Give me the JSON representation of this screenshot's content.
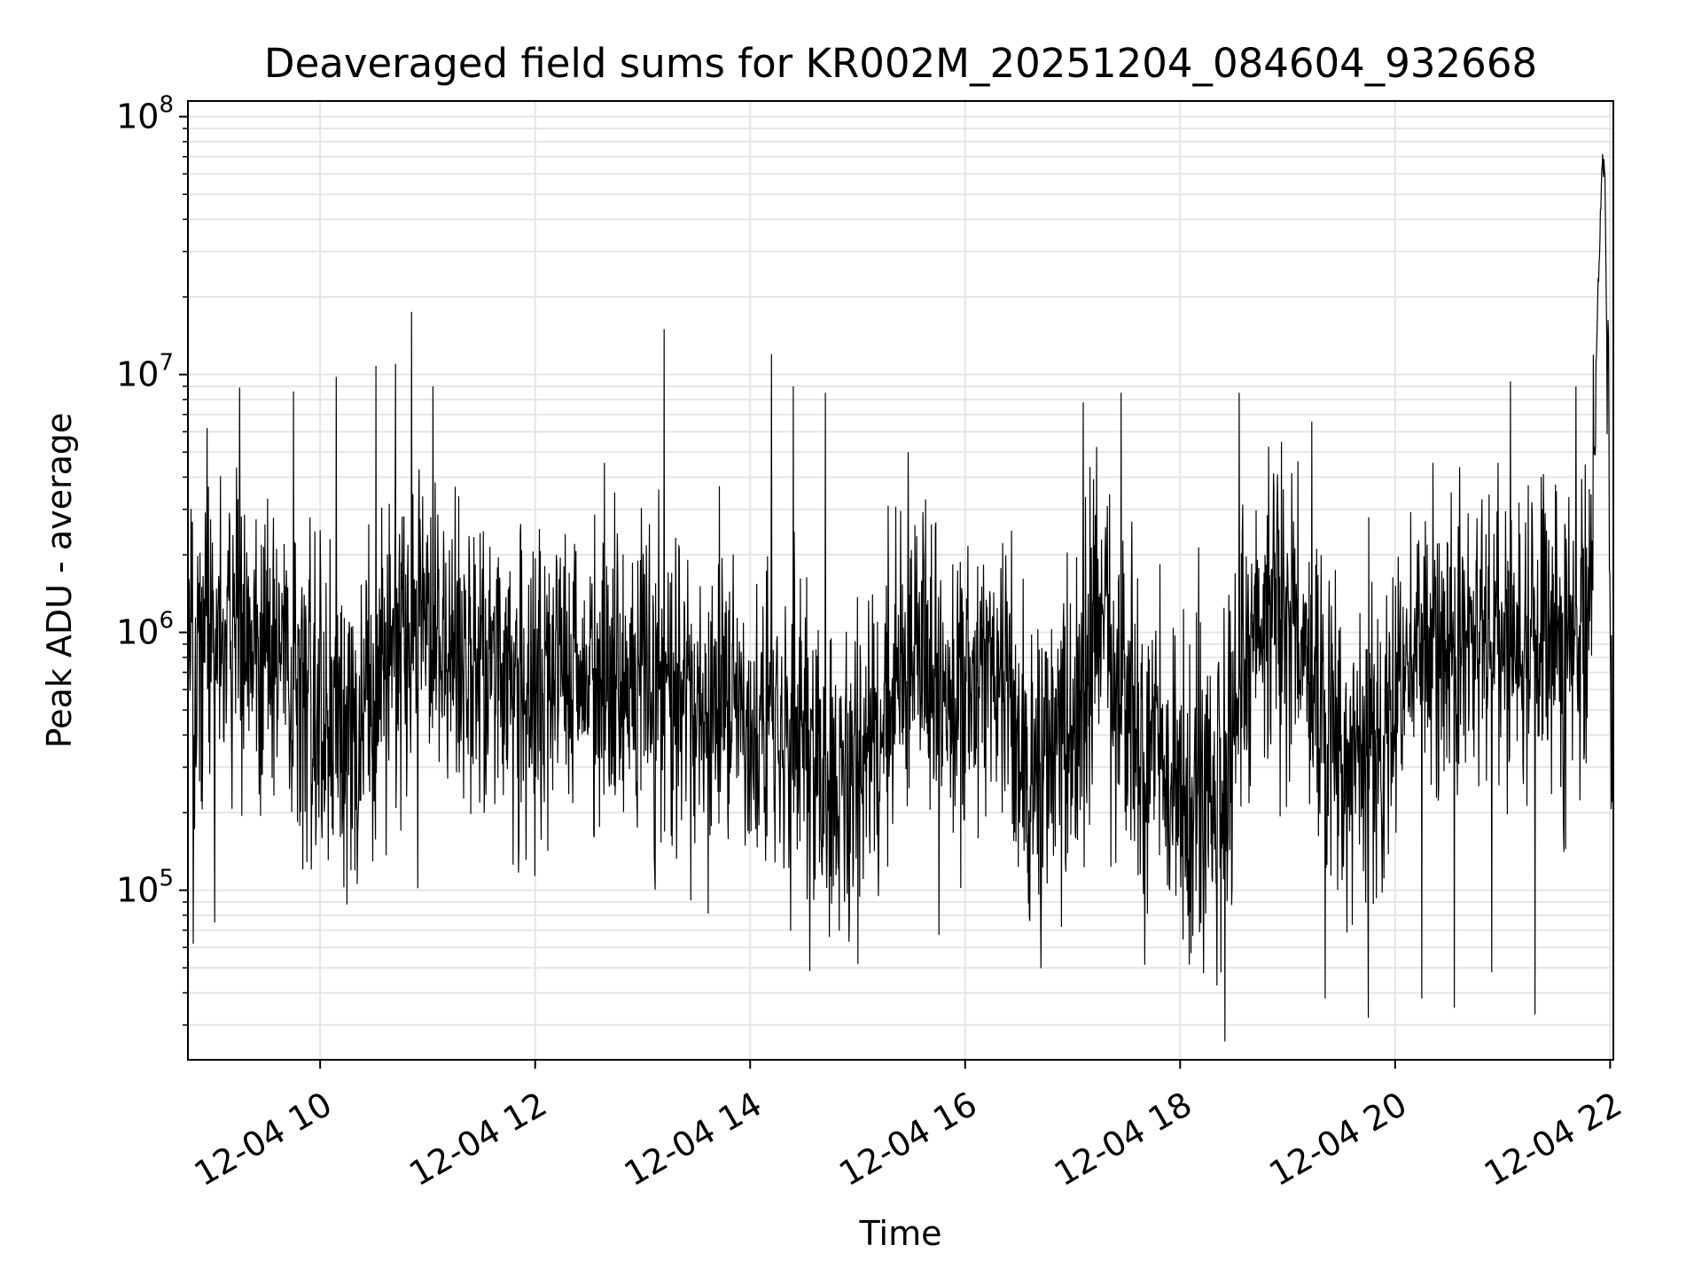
{
  "chart_data": {
    "type": "line",
    "title": "Deaveraged field sums for KR002M_20251204_084604_932668",
    "xlabel": "Time",
    "ylabel": "Peak ADU - average",
    "yscale": "log",
    "ylim": [
      22000,
      115000000
    ],
    "xlim": [
      8.77,
      22.03
    ],
    "grid": true,
    "line_color": "#000000",
    "grid_color": "#e5e5e5",
    "x_ticks": [
      {
        "value": 10,
        "label": "12-04 10"
      },
      {
        "value": 12,
        "label": "12-04 12"
      },
      {
        "value": 14,
        "label": "12-04 14"
      },
      {
        "value": 16,
        "label": "12-04 16"
      },
      {
        "value": 18,
        "label": "12-04 18"
      },
      {
        "value": 20,
        "label": "12-04 20"
      },
      {
        "value": 22,
        "label": "12-04 22"
      }
    ],
    "y_ticks": [
      {
        "value": 100000,
        "base": "10",
        "exp": "5"
      },
      {
        "value": 1000000,
        "base": "10",
        "exp": "6"
      },
      {
        "value": 10000000,
        "base": "10",
        "exp": "7"
      },
      {
        "value": 100000000,
        "base": "10",
        "exp": "8"
      }
    ],
    "series_profile": {
      "x": [
        8.77,
        9.2,
        9.6,
        10.0,
        10.3,
        10.8,
        11.3,
        12.0,
        12.8,
        13.6,
        14.2,
        14.8,
        15.2,
        15.5,
        15.9,
        16.2,
        16.6,
        17.0,
        17.3,
        17.6,
        18.0,
        18.4,
        18.7,
        19.0,
        19.4,
        19.8,
        20.2,
        20.6,
        21.0,
        21.4,
        21.8,
        21.92,
        21.95,
        22.0,
        22.03
      ],
      "y": [
        800000,
        1300000,
        700000,
        550000,
        420000,
        1200000,
        800000,
        700000,
        620000,
        560000,
        380000,
        300000,
        380000,
        900000,
        450000,
        950000,
        280000,
        420000,
        1200000,
        350000,
        250000,
        220000,
        1100000,
        1200000,
        420000,
        280000,
        900000,
        850000,
        1000000,
        900000,
        1000000,
        60000000,
        65000000,
        800000,
        900000
      ]
    },
    "spikes": [
      {
        "x": 8.95,
        "y": 6200000
      },
      {
        "x": 9.25,
        "y": 8900000
      },
      {
        "x": 9.75,
        "y": 8600000
      },
      {
        "x": 10.15,
        "y": 9800000
      },
      {
        "x": 10.52,
        "y": 10800000
      },
      {
        "x": 10.7,
        "y": 11000000
      },
      {
        "x": 10.85,
        "y": 17500000
      },
      {
        "x": 11.05,
        "y": 9000000
      },
      {
        "x": 13.2,
        "y": 15000000
      },
      {
        "x": 14.2,
        "y": 12000000
      },
      {
        "x": 14.4,
        "y": 9000000
      },
      {
        "x": 14.7,
        "y": 8500000
      },
      {
        "x": 17.1,
        "y": 7800000
      },
      {
        "x": 17.45,
        "y": 8500000
      },
      {
        "x": 18.55,
        "y": 8500000
      },
      {
        "x": 21.3,
        "y": 12000000
      },
      {
        "x": 21.68,
        "y": 9000000
      }
    ],
    "dips": [
      {
        "x": 8.82,
        "y": 62000
      },
      {
        "x": 9.02,
        "y": 75000
      },
      {
        "x": 10.25,
        "y": 88000
      },
      {
        "x": 18.1,
        "y": 57000
      },
      {
        "x": 18.38,
        "y": 48000
      },
      {
        "x": 19.35,
        "y": 38000
      },
      {
        "x": 19.75,
        "y": 32000
      },
      {
        "x": 20.25,
        "y": 38000
      },
      {
        "x": 20.55,
        "y": 35000
      },
      {
        "x": 20.9,
        "y": 48000
      },
      {
        "x": 21.3,
        "y": 33000
      }
    ]
  }
}
